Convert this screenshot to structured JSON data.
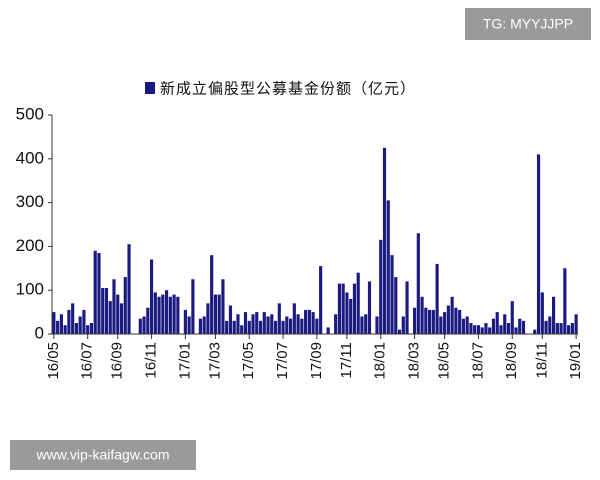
{
  "watermarks": [
    "TG: MYYJJPP",
    "www.vip-kaifagw.com"
  ],
  "chart_data": {
    "type": "bar",
    "categories": [
      "16/05",
      null,
      null,
      null,
      null,
      null,
      null,
      null,
      null,
      "16/07",
      null,
      null,
      null,
      null,
      null,
      null,
      null,
      "16/09",
      null,
      null,
      null,
      null,
      null,
      null,
      null,
      null,
      "16/11",
      null,
      null,
      null,
      null,
      null,
      null,
      null,
      null,
      "17/01",
      null,
      null,
      null,
      null,
      null,
      null,
      null,
      "17/03",
      null,
      null,
      null,
      null,
      null,
      null,
      null,
      null,
      "17/05",
      null,
      null,
      null,
      null,
      null,
      null,
      null,
      null,
      "17/07",
      null,
      null,
      null,
      null,
      null,
      null,
      null,
      null,
      "17/09",
      null,
      null,
      null,
      null,
      null,
      null,
      null,
      "17/11",
      null,
      null,
      null,
      null,
      null,
      null,
      null,
      null,
      "18/01",
      null,
      null,
      null,
      null,
      null,
      null,
      null,
      null,
      "18/03",
      null,
      null,
      null,
      null,
      null,
      null,
      null,
      "18/05",
      null,
      null,
      null,
      null,
      null,
      null,
      null,
      null,
      "18/07",
      null,
      null,
      null,
      null,
      null,
      null,
      null,
      null,
      "18/09",
      null,
      null,
      null,
      null,
      null,
      null,
      null,
      "18/11",
      null,
      null,
      null,
      null,
      null,
      null,
      null,
      null,
      "19/01"
    ],
    "series": [
      {
        "name": "新成立偏股型公募基金份额（亿元）",
        "color": "#1a1a80",
        "values": [
          50,
          30,
          45,
          20,
          55,
          70,
          25,
          40,
          55,
          20,
          25,
          190,
          185,
          105,
          105,
          75,
          125,
          90,
          70,
          130,
          205,
          0,
          0,
          35,
          40,
          60,
          170,
          95,
          85,
          90,
          100,
          85,
          90,
          85,
          0,
          55,
          40,
          125,
          0,
          35,
          40,
          70,
          180,
          90,
          90,
          125,
          30,
          65,
          30,
          45,
          20,
          50,
          30,
          45,
          50,
          30,
          50,
          40,
          45,
          30,
          70,
          30,
          40,
          35,
          70,
          45,
          35,
          55,
          55,
          50,
          35,
          155,
          0,
          15,
          0,
          45,
          115,
          115,
          95,
          80,
          115,
          140,
          40,
          45,
          120,
          0,
          40,
          215,
          425,
          305,
          180,
          130,
          10,
          40,
          120,
          0,
          60,
          230,
          85,
          60,
          55,
          55,
          160,
          40,
          50,
          65,
          85,
          60,
          55,
          35,
          40,
          25,
          20,
          20,
          15,
          25,
          15,
          35,
          50,
          20,
          45,
          25,
          75,
          15,
          35,
          30,
          0,
          0,
          10,
          410,
          95,
          30,
          40,
          85,
          25,
          25,
          150,
          20,
          25,
          45
        ]
      }
    ],
    "ylim": [
      0,
      500
    ],
    "yticks": [
      0,
      100,
      200,
      300,
      400,
      500
    ],
    "legend": "top"
  }
}
